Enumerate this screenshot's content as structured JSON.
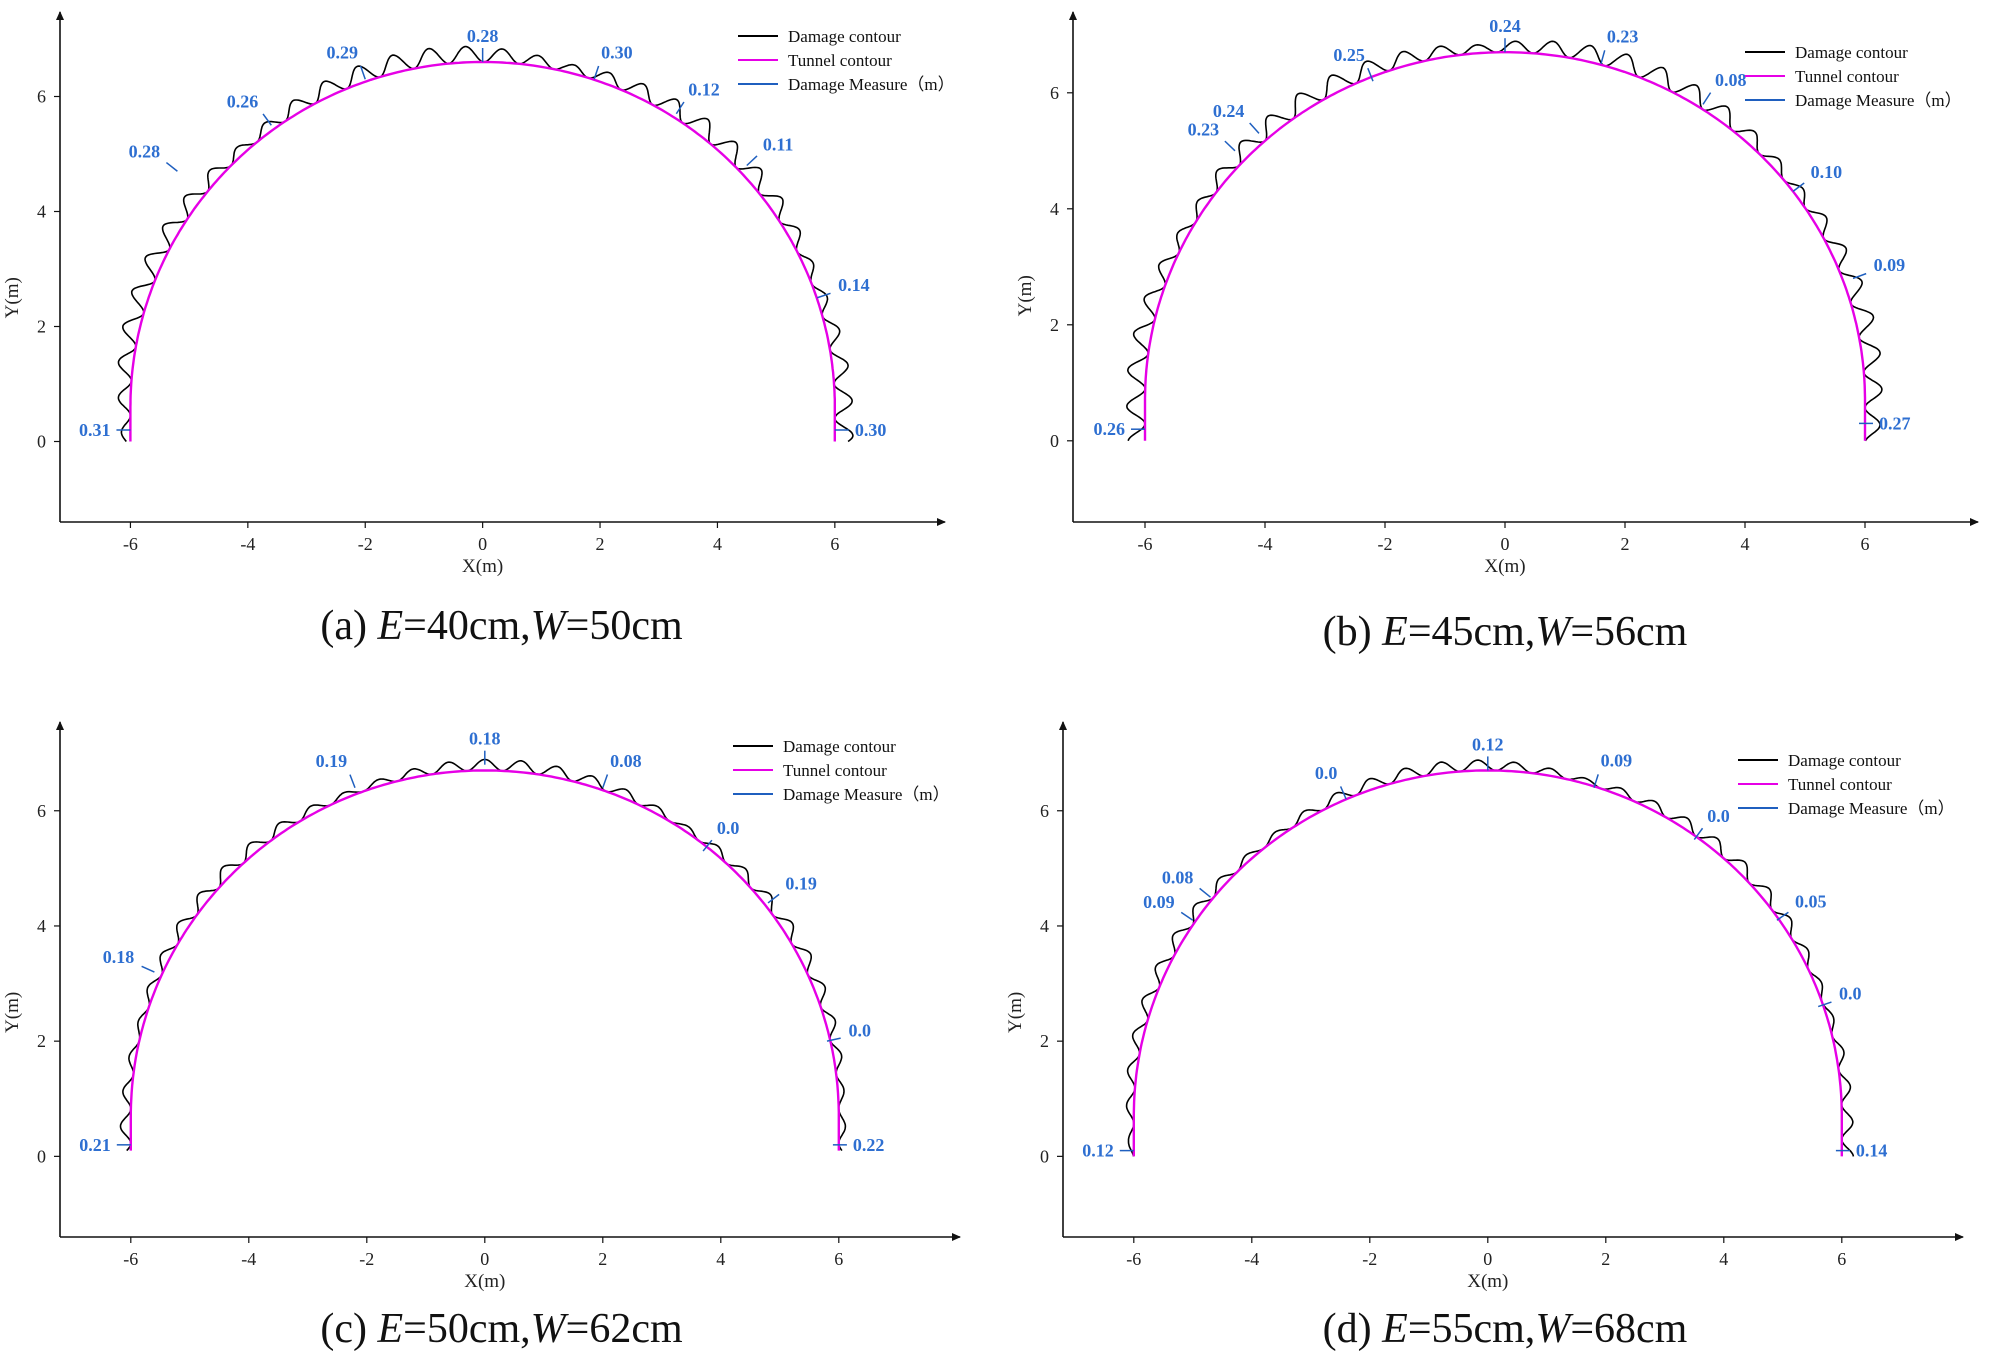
{
  "chart_data": [
    {
      "type": "line",
      "caption": {
        "prefix": "(a) ",
        "e_var": "E",
        "e_rest": "=40cm,",
        "w_var": "W",
        "w_rest": "=50cm"
      },
      "xlabel": "X(m)",
      "ylabel": "Y(m)",
      "xlim": [
        -7.2,
        7.5
      ],
      "ylim": [
        -1.4,
        7.3
      ],
      "xticks": [
        -6,
        -4,
        -2,
        0,
        2,
        4,
        6
      ],
      "yticks": [
        0,
        2,
        4,
        6
      ],
      "tunnel": {
        "radius": 6.0,
        "center_y": 0.6,
        "wall_bottom": 0.0
      },
      "legend": {
        "position": "top-right",
        "entries": [
          {
            "name": "Damage contour",
            "color": "#000000"
          },
          {
            "name": "Tunnel contour",
            "color": "#e600e6"
          },
          {
            "name": "Damage Measure（m）",
            "color": "#1f5fbf"
          }
        ]
      },
      "measures": [
        {
          "x": -6.0,
          "y": 0.2,
          "text": "0.31"
        },
        {
          "x": -5.2,
          "y": 4.7,
          "text": "0.28"
        },
        {
          "x": -3.6,
          "y": 5.5,
          "text": "0.26"
        },
        {
          "x": -2.0,
          "y": 6.3,
          "text": "0.29"
        },
        {
          "x": 0.0,
          "y": 6.6,
          "text": "0.28"
        },
        {
          "x": 1.9,
          "y": 6.3,
          "text": "0.30"
        },
        {
          "x": 3.3,
          "y": 5.7,
          "text": "0.12"
        },
        {
          "x": 4.5,
          "y": 4.8,
          "text": "0.11"
        },
        {
          "x": 5.7,
          "y": 2.5,
          "text": "0.14"
        },
        {
          "x": 6.0,
          "y": 0.2,
          "text": "0.30"
        }
      ]
    },
    {
      "type": "line",
      "caption": {
        "prefix": "(b) ",
        "e_var": "E",
        "e_rest": "=45cm,",
        "w_var": "W",
        "w_rest": "=56cm"
      },
      "xlabel": "X(m)",
      "ylabel": "Y(m)",
      "xlim": [
        -7.2,
        7.5
      ],
      "ylim": [
        -1.4,
        7.3
      ],
      "xticks": [
        -6,
        -4,
        -2,
        0,
        2,
        4,
        6
      ],
      "yticks": [
        0,
        2,
        4,
        6
      ],
      "tunnel": {
        "radius": 6.0,
        "center_y": 0.7,
        "wall_bottom": 0.0
      },
      "legend": {
        "position": "top-right",
        "entries": [
          {
            "name": "Damage contour",
            "color": "#000000"
          },
          {
            "name": "Tunnel contour",
            "color": "#e600e6"
          },
          {
            "name": "Damage Measure（m）",
            "color": "#1f5fbf"
          }
        ]
      },
      "measures": [
        {
          "x": -6.0,
          "y": 0.2,
          "text": "0.26"
        },
        {
          "x": -4.5,
          "y": 5.0,
          "text": "0.23"
        },
        {
          "x": -4.1,
          "y": 5.3,
          "text": "0.24"
        },
        {
          "x": -2.2,
          "y": 6.2,
          "text": "0.25"
        },
        {
          "x": 0.0,
          "y": 6.7,
          "text": "0.24"
        },
        {
          "x": 1.6,
          "y": 6.5,
          "text": "0.23"
        },
        {
          "x": 3.3,
          "y": 5.8,
          "text": "0.08"
        },
        {
          "x": 4.8,
          "y": 4.3,
          "text": "0.10"
        },
        {
          "x": 5.8,
          "y": 2.8,
          "text": "0.09"
        },
        {
          "x": 5.9,
          "y": 0.3,
          "text": "0.27"
        }
      ]
    },
    {
      "type": "line",
      "caption": {
        "prefix": "(c) ",
        "e_var": "E",
        "e_rest": "=50cm,",
        "w_var": "W",
        "w_rest": "=62cm"
      },
      "xlabel": "X(m)",
      "ylabel": "Y(m)",
      "xlim": [
        -7.2,
        7.5
      ],
      "ylim": [
        -1.4,
        7.5
      ],
      "xticks": [
        -6,
        -4,
        -2,
        0,
        2,
        4,
        6
      ],
      "yticks": [
        0,
        2,
        4,
        6
      ],
      "tunnel": {
        "radius": 6.0,
        "center_y": 0.7,
        "wall_bottom": 0.1
      },
      "legend": {
        "position": "top-right",
        "entries": [
          {
            "name": "Damage contour",
            "color": "#000000"
          },
          {
            "name": "Tunnel contour",
            "color": "#e600e6"
          },
          {
            "name": "Damage Measure（m）",
            "color": "#1f5fbf"
          }
        ]
      },
      "measures": [
        {
          "x": -6.0,
          "y": 0.2,
          "text": "0.21"
        },
        {
          "x": -5.6,
          "y": 3.2,
          "text": "0.18"
        },
        {
          "x": -2.2,
          "y": 6.4,
          "text": "0.19"
        },
        {
          "x": 0.0,
          "y": 6.8,
          "text": "0.18"
        },
        {
          "x": 2.0,
          "y": 6.4,
          "text": "0.08"
        },
        {
          "x": 3.7,
          "y": 5.3,
          "text": "0.0"
        },
        {
          "x": 4.8,
          "y": 4.4,
          "text": "0.19"
        },
        {
          "x": 5.8,
          "y": 2.0,
          "text": "0.0"
        },
        {
          "x": 5.9,
          "y": 0.2,
          "text": "0.22"
        }
      ]
    },
    {
      "type": "line",
      "caption": {
        "prefix": "(d) ",
        "e_var": "E",
        "e_rest": "=55cm,",
        "w_var": "W",
        "w_rest": "=68cm"
      },
      "xlabel": "X(m)",
      "ylabel": "Y(m)",
      "xlim": [
        -7.2,
        7.5
      ],
      "ylim": [
        -1.4,
        7.5
      ],
      "xticks": [
        -6,
        -4,
        -2,
        0,
        2,
        4,
        6
      ],
      "yticks": [
        0,
        2,
        4,
        6
      ],
      "tunnel": {
        "radius": 6.0,
        "center_y": 0.7,
        "wall_bottom": 0.0
      },
      "legend": {
        "position": "top-right",
        "entries": [
          {
            "name": "Damage contour",
            "color": "#000000"
          },
          {
            "name": "Tunnel contour",
            "color": "#e600e6"
          },
          {
            "name": "Damage Measure（m）",
            "color": "#1f5fbf"
          }
        ]
      },
      "measures": [
        {
          "x": -6.0,
          "y": 0.1,
          "text": "0.12"
        },
        {
          "x": -5.0,
          "y": 4.1,
          "text": "0.09"
        },
        {
          "x": -4.7,
          "y": 4.5,
          "text": "0.08"
        },
        {
          "x": -2.4,
          "y": 6.2,
          "text": "0.0"
        },
        {
          "x": 0.0,
          "y": 6.7,
          "text": "0.12"
        },
        {
          "x": 1.8,
          "y": 6.4,
          "text": "0.09"
        },
        {
          "x": 3.5,
          "y": 5.5,
          "text": "0.0"
        },
        {
          "x": 4.9,
          "y": 4.1,
          "text": "0.05"
        },
        {
          "x": 5.6,
          "y": 2.6,
          "text": "0.0"
        },
        {
          "x": 5.9,
          "y": 0.1,
          "text": "0.14"
        }
      ]
    }
  ]
}
